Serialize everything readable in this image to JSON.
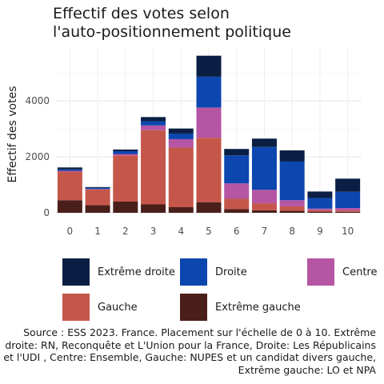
{
  "title_line1": "Effectif des votes selon",
  "title_line2": "l'auto-positionnement politique",
  "caption_lines": [
    "Source : ESS 2023. France. Placement sur l'échelle de 0 à 10. Extrême",
    "droite: RN, Reconquête et L'Union pour la France, Droite: Les Républicains",
    "et l'UDI , Centre: Ensemble, Gauche: NUPES et un candidat divers gauche,",
    "Extrême gauche: LO et NPA"
  ],
  "colors": {
    "Extrême droite": "#0b1f45",
    "Droite": "#0c47b0",
    "Centre": "#b555a4",
    "Gauche": "#c5574a",
    "Extrême gauche": "#4a1f1a"
  },
  "chart_data": {
    "type": "bar",
    "stacked": true,
    "categories": [
      "0",
      "1",
      "2",
      "3",
      "4",
      "5",
      "6",
      "7",
      "8",
      "9",
      "10"
    ],
    "ylabel": "Effectif des votes",
    "xlabel": "",
    "ylim": [
      0,
      5600
    ],
    "yticks": [
      0,
      2000,
      4000
    ],
    "grid": true,
    "legend_position": "bottom",
    "series": [
      {
        "name": "Extrême gauche",
        "values": [
          450,
          270,
          400,
          300,
          200,
          380,
          130,
          90,
          70,
          40,
          30
        ]
      },
      {
        "name": "Gauche",
        "values": [
          1020,
          560,
          1650,
          2650,
          2130,
          2300,
          370,
          250,
          160,
          50,
          50
        ]
      },
      {
        "name": "Centre",
        "values": [
          30,
          20,
          50,
          170,
          300,
          1080,
          550,
          480,
          220,
          60,
          90
        ]
      },
      {
        "name": "Droite",
        "values": [
          50,
          40,
          100,
          150,
          200,
          1100,
          1000,
          1530,
          1380,
          380,
          580
        ]
      },
      {
        "name": "Extrême droite",
        "values": [
          70,
          30,
          60,
          150,
          180,
          750,
          230,
          300,
          400,
          230,
          470
        ]
      }
    ]
  },
  "legend": {
    "items": [
      "Extrême droite",
      "Droite",
      "Centre",
      "Gauche",
      "Extrême gauche"
    ]
  }
}
